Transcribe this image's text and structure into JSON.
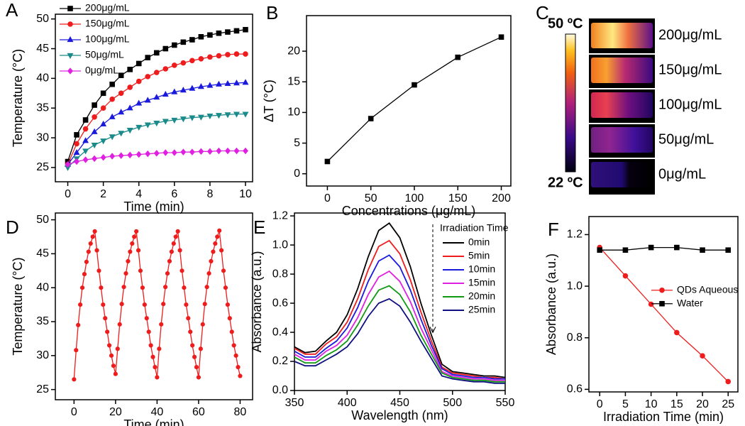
{
  "chart_data": [
    {
      "type": "line",
      "label": "A",
      "xlabel": "Time (min)",
      "ylabel": "Temperature (°C)",
      "x": [
        0,
        0.5,
        1,
        1.5,
        2,
        2.5,
        3,
        3.5,
        4,
        4.5,
        5,
        5.5,
        6,
        6.5,
        7,
        7.5,
        8,
        8.5,
        9,
        9.5,
        10
      ],
      "xlim": [
        -0.7,
        10.4
      ],
      "xticks": [
        0,
        2,
        4,
        6,
        8,
        10
      ],
      "ylim": [
        22.6,
        50.8
      ],
      "yticks": [
        25,
        30,
        35,
        40,
        45,
        50
      ],
      "legend": "upper left",
      "series": [
        {
          "name": "200μg/mL",
          "color": "#000000",
          "marker": "square",
          "values": [
            26,
            30.5,
            33,
            35.5,
            37.5,
            39,
            40.5,
            41.5,
            42.5,
            43.5,
            44.3,
            45,
            45.6,
            46.1,
            46.5,
            47,
            47.3,
            47.6,
            47.8,
            48,
            48.2
          ]
        },
        {
          "name": "150μg/mL",
          "color": "#ee1c1c",
          "marker": "circle",
          "values": [
            25.5,
            29,
            31.5,
            33.5,
            35,
            36.5,
            37.5,
            38.5,
            39.5,
            40.3,
            41,
            41.6,
            42.2,
            42.6,
            43,
            43.3,
            43.6,
            43.8,
            44,
            44.1,
            44.1
          ]
        },
        {
          "name": "100μg/mL",
          "color": "#1a1adc",
          "marker": "triangle",
          "values": [
            25.5,
            27.5,
            29.5,
            31,
            32.3,
            33.5,
            34.3,
            35,
            35.8,
            36.3,
            36.8,
            37.3,
            37.7,
            38,
            38.3,
            38.6,
            38.8,
            39,
            39.1,
            39.2,
            39.3
          ]
        },
        {
          "name": "50μg/mL",
          "color": "#1a8a8a",
          "marker": "down-triangle",
          "values": [
            25,
            26.5,
            27.8,
            28.8,
            29.5,
            30.2,
            30.8,
            31.3,
            31.8,
            32.2,
            32.5,
            32.8,
            33,
            33.2,
            33.4,
            33.5,
            33.7,
            33.8,
            33.9,
            34,
            34
          ]
        },
        {
          "name": "0μg/mL",
          "color": "#e020e0",
          "marker": "diamond",
          "values": [
            25.5,
            26,
            26.3,
            26.5,
            26.7,
            26.9,
            27,
            27.1,
            27.2,
            27.3,
            27.4,
            27.5,
            27.5,
            27.6,
            27.6,
            27.7,
            27.7,
            27.8,
            27.8,
            27.8,
            27.8
          ]
        }
      ]
    },
    {
      "type": "line",
      "label": "B",
      "xlabel": "Concentrations (μg/mL)",
      "ylabel": "ΔT (°C)",
      "x": [
        0,
        50,
        100,
        150,
        200
      ],
      "xlim": [
        -24,
        211
      ],
      "xticks": [
        0,
        50,
        100,
        150,
        200
      ],
      "ylim": [
        -2,
        25.8
      ],
      "yticks": [
        0,
        5,
        10,
        15,
        20
      ],
      "series": [
        {
          "color": "#000000",
          "marker": "square",
          "values": [
            2,
            9,
            14.5,
            19,
            22.3
          ]
        }
      ]
    },
    {
      "type": "line",
      "label": "D",
      "xlabel": "Time (min)",
      "ylabel": "Temperature (°C)",
      "x": [
        0,
        1,
        2,
        3,
        4,
        5,
        6,
        7,
        8,
        9,
        10,
        11,
        12,
        13,
        14,
        15,
        16,
        17,
        18,
        19,
        20,
        21,
        22,
        23,
        24,
        25,
        26,
        27,
        28,
        29,
        30,
        31,
        32,
        33,
        34,
        35,
        36,
        37,
        38,
        39,
        40,
        41,
        42,
        43,
        44,
        45,
        46,
        47,
        48,
        49,
        50,
        51,
        52,
        53,
        54,
        55,
        56,
        57,
        58,
        59,
        60,
        61,
        62,
        63,
        64,
        65,
        66,
        67,
        68,
        69,
        70,
        71,
        72,
        73,
        74,
        75,
        76,
        77,
        78,
        79,
        80
      ],
      "xlim": [
        -9,
        86
      ],
      "xticks": [
        0,
        20,
        40,
        60,
        80
      ],
      "ylim": [
        23.5,
        51
      ],
      "yticks": [
        25,
        30,
        35,
        40,
        45,
        50
      ],
      "series": [
        {
          "color": "#ee1c1c",
          "marker": "circle",
          "values": [
            26.5,
            30.8,
            34.5,
            37.5,
            40,
            42,
            43.8,
            45.3,
            46.5,
            47.5,
            48.3,
            45.5,
            42.5,
            40,
            37.5,
            35.5,
            33.5,
            31.5,
            30,
            28.5,
            27.3,
            31,
            34.6,
            37.6,
            40.1,
            42.1,
            43.9,
            45.3,
            46.5,
            47.5,
            48.3,
            45.5,
            42.5,
            40,
            37.5,
            35.5,
            33.5,
            31.5,
            29.8,
            28.3,
            26.8,
            31,
            34.6,
            37.6,
            40.1,
            42.1,
            43.9,
            45.3,
            46.5,
            47.5,
            48.3,
            45.5,
            42.5,
            40,
            37.5,
            35.5,
            33.5,
            31.5,
            29.8,
            28.3,
            26.8,
            31,
            34.6,
            37.6,
            40.1,
            42.1,
            43.9,
            45.3,
            46.5,
            47.5,
            48.4,
            45.5,
            42.5,
            40,
            37.5,
            35.5,
            33.5,
            31.5,
            30,
            28.3,
            27
          ]
        }
      ]
    },
    {
      "type": "line",
      "label": "E",
      "xlabel": "Wavelength (nm)",
      "ylabel": "Absorbance (a.u.)",
      "x": [
        350,
        360,
        370,
        380,
        390,
        400,
        410,
        420,
        430,
        440,
        450,
        460,
        470,
        480,
        490,
        500,
        510,
        520,
        530,
        540,
        550
      ],
      "xlim": [
        350,
        550
      ],
      "xticks": [
        350,
        400,
        450,
        500,
        550
      ],
      "ylim": [
        0,
        1.22
      ],
      "yticks": [
        {
          "value": 0,
          "label": "0.0"
        },
        0.2,
        0.4,
        0.6,
        0.8,
        {
          "value": 1,
          "label": "1.0"
        },
        1.2
      ],
      "legend": "upper right",
      "legend_title": "Irradiation Time",
      "series": [
        {
          "name": "0min",
          "color": "#000000",
          "values": [
            0.3,
            0.26,
            0.27,
            0.34,
            0.4,
            0.52,
            0.7,
            0.92,
            1.1,
            1.15,
            1.05,
            0.85,
            0.6,
            0.38,
            0.18,
            0.13,
            0.12,
            0.11,
            0.1,
            0.1,
            0.09
          ]
        },
        {
          "name": "5min",
          "color": "#ee1c1c",
          "values": [
            0.29,
            0.25,
            0.25,
            0.32,
            0.37,
            0.47,
            0.63,
            0.83,
            0.99,
            1.03,
            0.94,
            0.76,
            0.54,
            0.34,
            0.16,
            0.12,
            0.11,
            0.1,
            0.09,
            0.09,
            0.08
          ]
        },
        {
          "name": "10min",
          "color": "#1a1adc",
          "values": [
            0.27,
            0.23,
            0.23,
            0.29,
            0.34,
            0.43,
            0.57,
            0.75,
            0.89,
            0.93,
            0.85,
            0.69,
            0.49,
            0.31,
            0.15,
            0.11,
            0.1,
            0.09,
            0.09,
            0.08,
            0.08
          ]
        },
        {
          "name": "15min",
          "color": "#e020e0",
          "values": [
            0.25,
            0.21,
            0.21,
            0.27,
            0.31,
            0.38,
            0.5,
            0.66,
            0.78,
            0.82,
            0.75,
            0.61,
            0.43,
            0.28,
            0.13,
            0.1,
            0.09,
            0.08,
            0.08,
            0.07,
            0.07
          ]
        },
        {
          "name": "20min",
          "color": "#119a11",
          "values": [
            0.23,
            0.19,
            0.19,
            0.24,
            0.28,
            0.34,
            0.45,
            0.58,
            0.69,
            0.72,
            0.66,
            0.54,
            0.38,
            0.25,
            0.12,
            0.09,
            0.08,
            0.07,
            0.07,
            0.06,
            0.06
          ]
        },
        {
          "name": "25min",
          "color": "#101080",
          "values": [
            0.2,
            0.17,
            0.17,
            0.21,
            0.25,
            0.3,
            0.39,
            0.51,
            0.6,
            0.63,
            0.58,
            0.47,
            0.34,
            0.22,
            0.1,
            0.08,
            0.07,
            0.06,
            0.06,
            0.05,
            0.05
          ]
        }
      ]
    },
    {
      "type": "line",
      "label": "F",
      "xlabel": "Irradiation Time (min)",
      "ylabel": "Absorbance (a.u.)",
      "x": [
        0,
        5,
        10,
        15,
        20,
        25
      ],
      "xlim": [
        -2.1,
        26.9
      ],
      "xticks": [
        0,
        5,
        10,
        15,
        20,
        25
      ],
      "ylim": [
        0.59,
        1.27
      ],
      "yticks": [
        0.6,
        0.8,
        {
          "value": 1,
          "label": "1.0"
        },
        1.2
      ],
      "legend": "center right",
      "series": [
        {
          "name": "QDs Aqueous",
          "color": "#ee1c1c",
          "marker": "circle",
          "values": [
            1.15,
            1.04,
            0.93,
            0.82,
            0.73,
            0.63
          ]
        },
        {
          "name": "Water",
          "color": "#000000",
          "marker": "square",
          "values": [
            1.14,
            1.14,
            1.15,
            1.15,
            1.14,
            1.14
          ]
        }
      ]
    }
  ],
  "thermal_images": {
    "label": "C",
    "scale_max": "50 ºC",
    "scale_min": "22 ºC",
    "rows": [
      "200μg/mL",
      "150μg/mL",
      "100μg/mL",
      "50μg/mL",
      "0μg/mL"
    ]
  }
}
